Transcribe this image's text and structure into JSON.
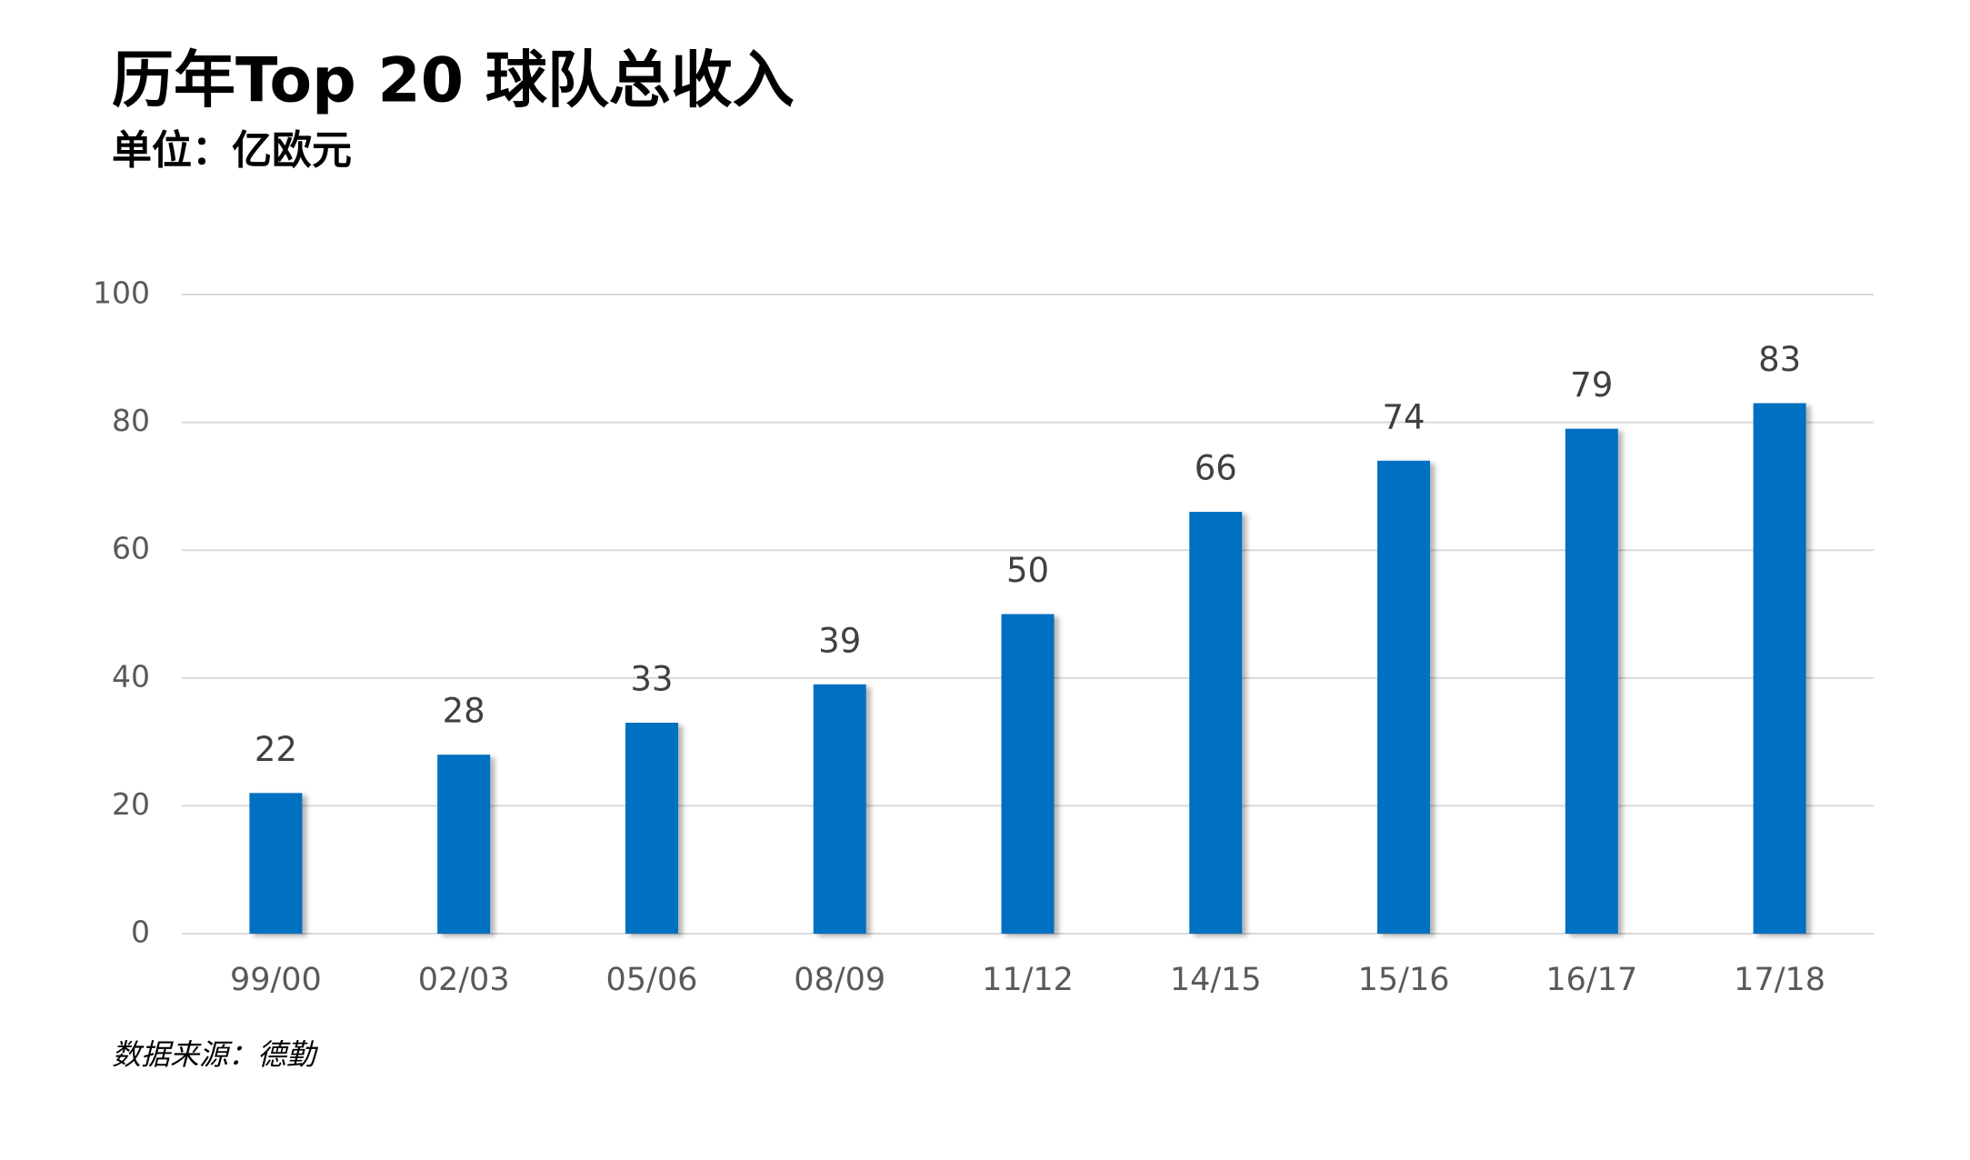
{
  "chart_data": {
    "type": "bar",
    "title": "历年Top 20 球队总收入",
    "subtitle": "单位：亿欧元",
    "categories": [
      "99/00",
      "02/03",
      "05/06",
      "08/09",
      "11/12",
      "14/15",
      "15/16",
      "16/17",
      "17/18"
    ],
    "values": [
      22,
      28,
      33,
      39,
      50,
      66,
      74,
      79,
      83
    ],
    "color": "#0070c0",
    "ylim": [
      0,
      100
    ],
    "yticks": [
      0,
      20,
      40,
      60,
      80,
      100
    ],
    "grid": true,
    "source": "数据来源：德勤"
  }
}
